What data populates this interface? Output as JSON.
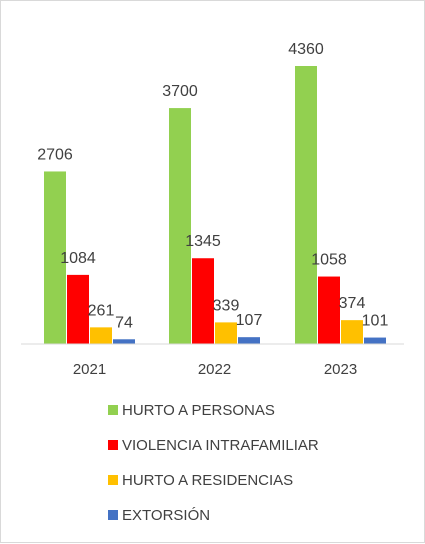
{
  "chart_data": {
    "type": "bar",
    "categories": [
      "2021",
      "2022",
      "2023"
    ],
    "series": [
      {
        "name": "HURTO A PERSONAS",
        "values": [
          2706,
          3700,
          4360
        ],
        "color": "#92d050"
      },
      {
        "name": "VIOLENCIA INTRAFAMILIAR",
        "values": [
          1084,
          1345,
          1058
        ],
        "color": "#ff0000"
      },
      {
        "name": "HURTO A RESIDENCIAS",
        "values": [
          261,
          339,
          374
        ],
        "color": "#ffc000"
      },
      {
        "name": "EXTORSIÓN",
        "values": [
          74,
          107,
          101
        ],
        "color": "#4472c4"
      }
    ],
    "data_labels": true,
    "ylim": [
      0,
      4360
    ],
    "grid": false,
    "legend": "bottom"
  }
}
